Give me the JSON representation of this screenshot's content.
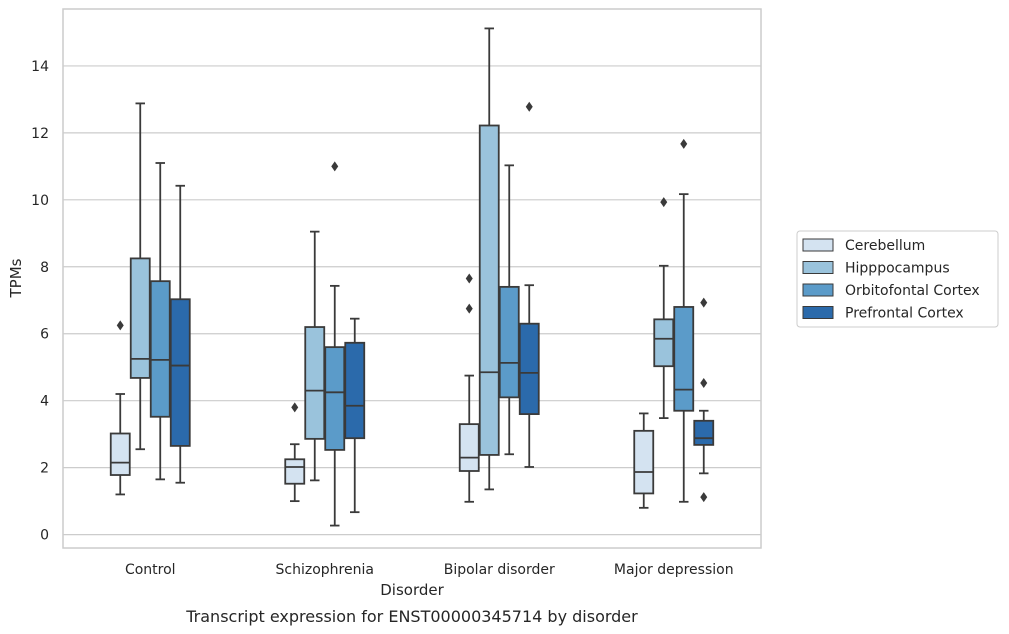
{
  "chart_data": {
    "type": "box",
    "caption": "Transcript expression for ENST00000345714 by disorder",
    "xlabel": "Disorder",
    "ylabel": "TPMs",
    "ylim": [
      -0.4,
      15.7
    ],
    "yticks": [
      0,
      2,
      4,
      6,
      8,
      10,
      12,
      14
    ],
    "grid": true,
    "legend_position": "right",
    "categories": [
      "Control",
      "Schizophrenia",
      "Bipolar disorder",
      "Major depression"
    ],
    "series": [
      {
        "name": "Cerebellum",
        "color": "#d4e3f1",
        "boxes": [
          {
            "whislo": 1.2,
            "q1": 1.78,
            "med": 2.15,
            "q3": 3.02,
            "whishi": 4.2,
            "fliers": [
              6.25
            ]
          },
          {
            "whislo": 1.0,
            "q1": 1.52,
            "med": 2.02,
            "q3": 2.25,
            "whishi": 2.7,
            "fliers": [
              3.8
            ]
          },
          {
            "whislo": 0.98,
            "q1": 1.9,
            "med": 2.3,
            "q3": 3.3,
            "whishi": 4.75,
            "fliers": [
              6.75,
              7.65
            ]
          },
          {
            "whislo": 0.8,
            "q1": 1.23,
            "med": 1.87,
            "q3": 3.1,
            "whishi": 3.62,
            "fliers": []
          }
        ]
      },
      {
        "name": "Hipppocampus",
        "color": "#9ac3dc",
        "boxes": [
          {
            "whislo": 2.55,
            "q1": 4.68,
            "med": 5.25,
            "q3": 8.25,
            "whishi": 12.88,
            "fliers": []
          },
          {
            "whislo": 1.62,
            "q1": 2.86,
            "med": 4.3,
            "q3": 6.2,
            "whishi": 9.05,
            "fliers": []
          },
          {
            "whislo": 1.35,
            "q1": 2.38,
            "med": 4.85,
            "q3": 12.22,
            "whishi": 15.12,
            "fliers": []
          },
          {
            "whislo": 3.48,
            "q1": 5.03,
            "med": 5.85,
            "q3": 6.43,
            "whishi": 8.03,
            "fliers": [
              9.93
            ]
          }
        ]
      },
      {
        "name": "Orbitofontal Cortex",
        "color": "#5b9bc9",
        "boxes": [
          {
            "whislo": 1.65,
            "q1": 3.52,
            "med": 5.22,
            "q3": 7.57,
            "whishi": 11.1,
            "fliers": []
          },
          {
            "whislo": 0.27,
            "q1": 2.53,
            "med": 4.25,
            "q3": 5.6,
            "whishi": 7.43,
            "fliers": [
              11.0
            ]
          },
          {
            "whislo": 2.4,
            "q1": 4.1,
            "med": 5.13,
            "q3": 7.4,
            "whishi": 11.03,
            "fliers": []
          },
          {
            "whislo": 0.98,
            "q1": 3.7,
            "med": 4.33,
            "q3": 6.8,
            "whishi": 10.17,
            "fliers": [
              11.67
            ]
          }
        ]
      },
      {
        "name": "Prefrontal Cortex",
        "color": "#2b6aab",
        "boxes": [
          {
            "whislo": 1.55,
            "q1": 2.65,
            "med": 5.05,
            "q3": 7.03,
            "whishi": 10.42,
            "fliers": []
          },
          {
            "whislo": 0.67,
            "q1": 2.88,
            "med": 3.85,
            "q3": 5.73,
            "whishi": 6.45,
            "fliers": []
          },
          {
            "whislo": 2.02,
            "q1": 3.6,
            "med": 4.83,
            "q3": 6.3,
            "whishi": 7.45,
            "fliers": [
              12.78
            ]
          },
          {
            "whislo": 1.83,
            "q1": 2.68,
            "med": 2.88,
            "q3": 3.4,
            "whishi": 3.7,
            "fliers": [
              1.12,
              4.53,
              6.93
            ]
          }
        ]
      }
    ]
  }
}
